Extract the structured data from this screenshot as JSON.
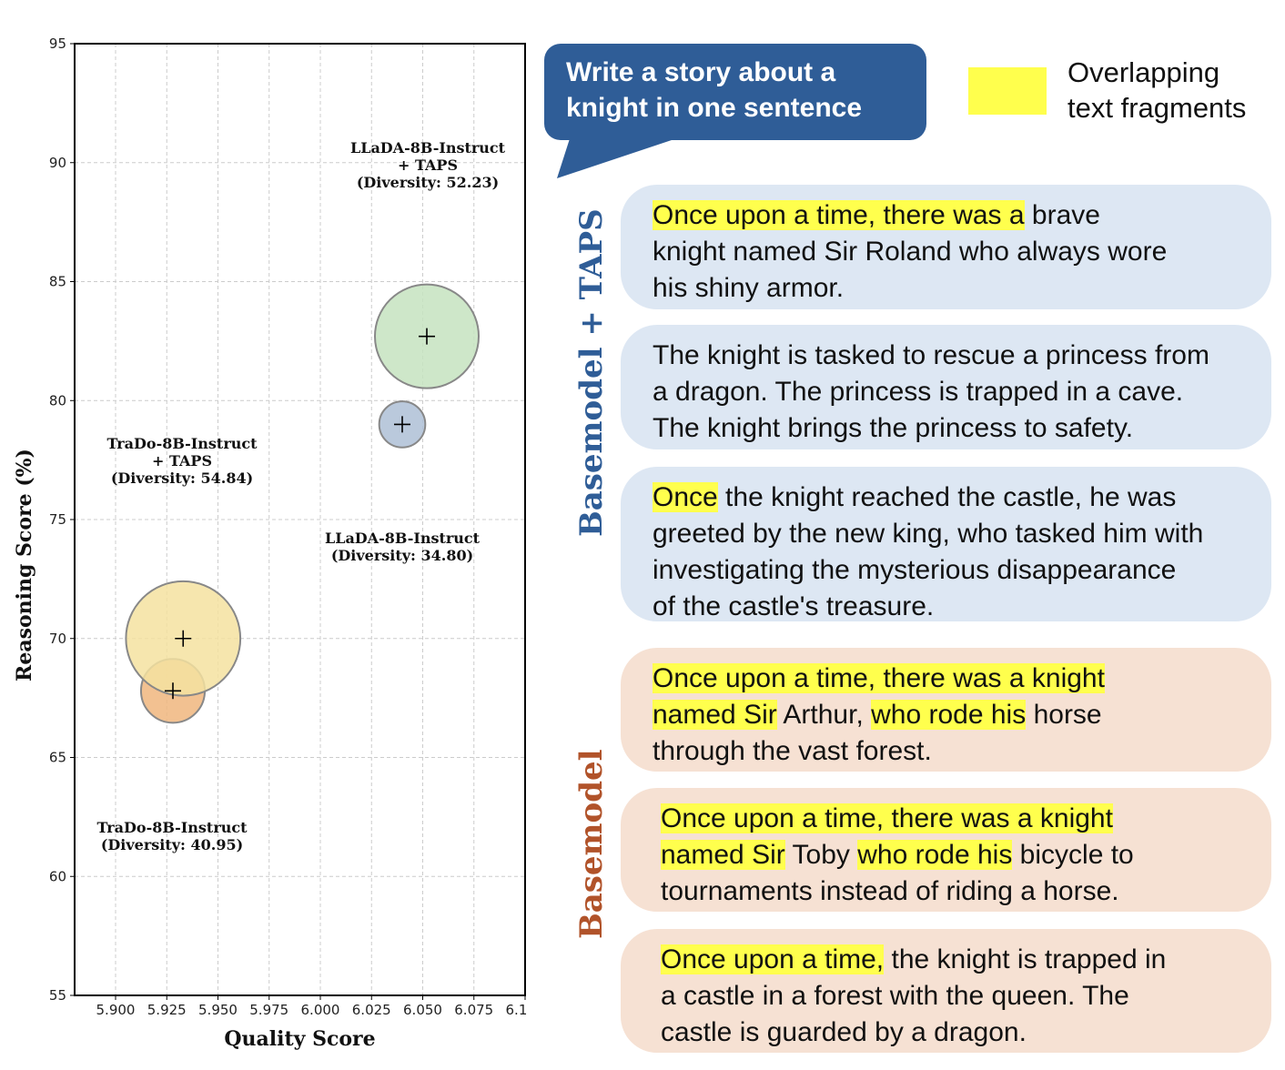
{
  "chart_data": {
    "type": "scatter",
    "subtype": "bubble",
    "xlabel": "Quality Score",
    "ylabel": "Reasoning Score (%)",
    "xlim": [
      5.88,
      6.1
    ],
    "ylim": [
      55,
      95
    ],
    "xticks": [
      "5.900",
      "5.925",
      "5.950",
      "5.975",
      "6.000",
      "6.025",
      "6.050",
      "6.075",
      "6.100"
    ],
    "xtick_values": [
      5.9,
      5.925,
      5.95,
      5.975,
      6.0,
      6.025,
      6.05,
      6.075,
      6.1
    ],
    "yticks": [
      "55",
      "60",
      "65",
      "70",
      "75",
      "80",
      "85",
      "90",
      "95"
    ],
    "ytick_values": [
      55,
      60,
      65,
      70,
      75,
      80,
      85,
      90,
      95
    ],
    "grid": true,
    "series": [
      {
        "name": "LLaDA-8B-Instruct + TAPS",
        "x": 6.052,
        "y": 82.7,
        "diversity": 52.23,
        "color": "#c6e3bf",
        "label_lines": [
          "LLaDA-8B-Instruct",
          "+ TAPS",
          "(Diversity: 52.23)"
        ]
      },
      {
        "name": "LLaDA-8B-Instruct",
        "x": 6.04,
        "y": 79.0,
        "diversity": 34.8,
        "color": "#aec0d6",
        "label_lines": [
          "LLaDA-8B-Instruct",
          "(Diversity: 34.80)"
        ]
      },
      {
        "name": "TraDo-8B-Instruct + TAPS",
        "x": 5.933,
        "y": 70.0,
        "diversity": 54.84,
        "color": "#f4e2a0",
        "label_lines": [
          "TraDo-8B-Instruct",
          "+ TAPS",
          "(Diversity: 54.84)"
        ]
      },
      {
        "name": "TraDo-8B-Instruct",
        "x": 5.928,
        "y": 67.8,
        "diversity": 40.95,
        "color": "#f0b67e",
        "label_lines": [
          "TraDo-8B-Instruct",
          "(Diversity: 40.95)"
        ]
      }
    ]
  },
  "prompt": {
    "lines": [
      "Write a story about a",
      "knight in one sentence"
    ]
  },
  "legend": {
    "swatch_color": "#ffff4d",
    "lines": [
      "Overlapping",
      "text fragments"
    ]
  },
  "groups": {
    "taps": {
      "label": "Basemodel + TAPS",
      "color": "#2f5d97"
    },
    "base": {
      "label": "Basemodel",
      "color": "#b1532a"
    }
  },
  "stories": {
    "taps": [
      {
        "lines": [
          [
            {
              "text": "Once upon a time, there was a",
              "hl": true
            },
            {
              "text": " brave",
              "hl": false
            }
          ],
          [
            {
              "text": "knight named Sir Roland who always wore",
              "hl": false
            }
          ],
          [
            {
              "text": "his shiny armor.",
              "hl": false
            }
          ]
        ]
      },
      {
        "lines": [
          [
            {
              "text": "The knight is tasked to rescue a princess from",
              "hl": false
            }
          ],
          [
            {
              "text": "a dragon. The princess is trapped in a cave.",
              "hl": false
            }
          ],
          [
            {
              "text": "The knight brings the princess to safety.",
              "hl": false
            }
          ]
        ]
      },
      {
        "lines": [
          [
            {
              "text": "Once",
              "hl": true
            },
            {
              "text": " the knight reached the castle, he was",
              "hl": false
            }
          ],
          [
            {
              "text": "greeted by the new king, who tasked him with",
              "hl": false
            }
          ],
          [
            {
              "text": "investigating the mysterious disappearance",
              "hl": false
            }
          ],
          [
            {
              "text": "of the castle's treasure.",
              "hl": false
            }
          ]
        ]
      }
    ],
    "base": [
      {
        "lines": [
          [
            {
              "text": "Once upon a time, there was a knight ",
              "hl": true
            }
          ],
          [
            {
              "text": "named Sir",
              "hl": true
            },
            {
              "text": " Arthur, ",
              "hl": false
            },
            {
              "text": "who rode his",
              "hl": true
            },
            {
              "text": " horse",
              "hl": false
            }
          ],
          [
            {
              "text": "through the vast forest.",
              "hl": false
            }
          ]
        ]
      },
      {
        "lines": [
          [
            {
              "text": "Once upon a time, there was a knight ",
              "hl": true
            }
          ],
          [
            {
              "text": "named Sir",
              "hl": true
            },
            {
              "text": " Toby ",
              "hl": false
            },
            {
              "text": "who rode his",
              "hl": true
            },
            {
              "text": " bicycle to",
              "hl": false
            }
          ],
          [
            {
              "text": "tournaments instead of riding a horse.",
              "hl": false
            }
          ]
        ]
      },
      {
        "lines": [
          [
            {
              "text": "Once upon a time,",
              "hl": true
            },
            {
              "text": " the knight is trapped in",
              "hl": false
            }
          ],
          [
            {
              "text": "a castle in a forest with the queen. The",
              "hl": false
            }
          ],
          [
            {
              "text": "castle is guarded by a dragon.",
              "hl": false
            }
          ]
        ]
      }
    ]
  }
}
